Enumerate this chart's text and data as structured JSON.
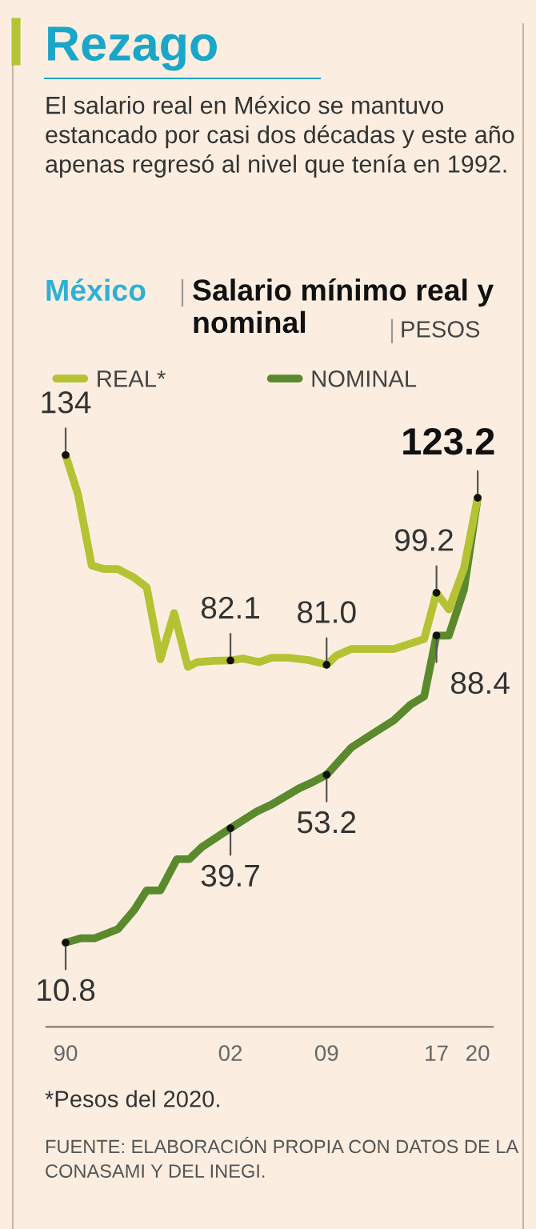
{
  "chart_data": {
    "type": "line",
    "title": "Rezago",
    "subtitle": "El salario real en México se mantuvo estancado por casi dos décadas y este año apenas regresó al nivel que tenía en 1992.",
    "annotations": [
      "México",
      "Salario mínimo real y nominal",
      "PESOS",
      "*Pesos del 2020.",
      "FUENTE: ELABORACIÓN PROPIA CON DATOS DE LA CONASAMI Y DEL INEGI."
    ],
    "series": [
      {
        "name": "REAL*",
        "color": "#b5c234",
        "x": [
          1990.0,
          1990.9,
          1991.9,
          1992.8,
          1993.8,
          1995.0,
          1995.9,
          1996.9,
          1997.9,
          1998.9,
          1999.6,
          2000.8,
          2002.0,
          2002.9,
          2004.1,
          2005.0,
          2006.2,
          2007.7,
          2009.0,
          2009.7,
          2010.8,
          2012.4,
          2013.9,
          2016.1,
          2017.0,
          2017.9,
          2019.0,
          2020.0
        ],
        "values": [
          134,
          124.1,
          106.1,
          105.2,
          105.2,
          103.0,
          100.6,
          82.4,
          94.1,
          80.5,
          81.7,
          82.0,
          82.1,
          82.6,
          81.7,
          82.8,
          82.8,
          82.2,
          81.0,
          83.3,
          85.0,
          85.0,
          85.0,
          87.5,
          99.2,
          95.0,
          105.4,
          123.2
        ],
        "value_labels": [
          "134",
          null,
          null,
          null,
          null,
          null,
          null,
          null,
          null,
          null,
          null,
          null,
          "82.1",
          null,
          null,
          null,
          null,
          null,
          "81.0",
          null,
          null,
          null,
          null,
          null,
          "99.2",
          null,
          null,
          "123.2"
        ]
      },
      {
        "name": "NOMINAL",
        "color": "#5b8a2e",
        "x": [
          1990.0,
          1991.1,
          1992.1,
          1993.8,
          1995.0,
          1995.9,
          1996.9,
          1998.1,
          1999.0,
          1999.9,
          2002.0,
          2003.9,
          2005.0,
          2007.0,
          2007.9,
          2009.0,
          2010.8,
          2012.4,
          2013.9,
          2015.1,
          2016.1,
          2017.0,
          2017.9,
          2019.0,
          2020.0
        ],
        "values": [
          10.8,
          11.9,
          11.9,
          14.2,
          19.1,
          24.0,
          24.0,
          31.9,
          31.9,
          34.9,
          39.7,
          43.9,
          45.7,
          49.8,
          51.2,
          53.2,
          60.1,
          63.7,
          67.0,
          70.9,
          73.0,
          88.4,
          88.4,
          100.0,
          123.2
        ],
        "value_labels": [
          "10.8",
          null,
          null,
          null,
          null,
          null,
          null,
          null,
          null,
          null,
          "39.7",
          null,
          null,
          null,
          null,
          "53.2",
          null,
          null,
          null,
          null,
          null,
          "88.4",
          null,
          null,
          null
        ]
      }
    ],
    "xlim": [
      1988.6,
      2021.1
    ],
    "xticks": [
      {
        "value": 1990,
        "label": "90"
      },
      {
        "value": 2002,
        "label": "02"
      },
      {
        "value": 2009,
        "label": "09"
      },
      {
        "value": 2017,
        "label": "17"
      },
      {
        "value": 2020,
        "label": "20"
      }
    ],
    "tick_labels": "x",
    "legend": "top left"
  }
}
